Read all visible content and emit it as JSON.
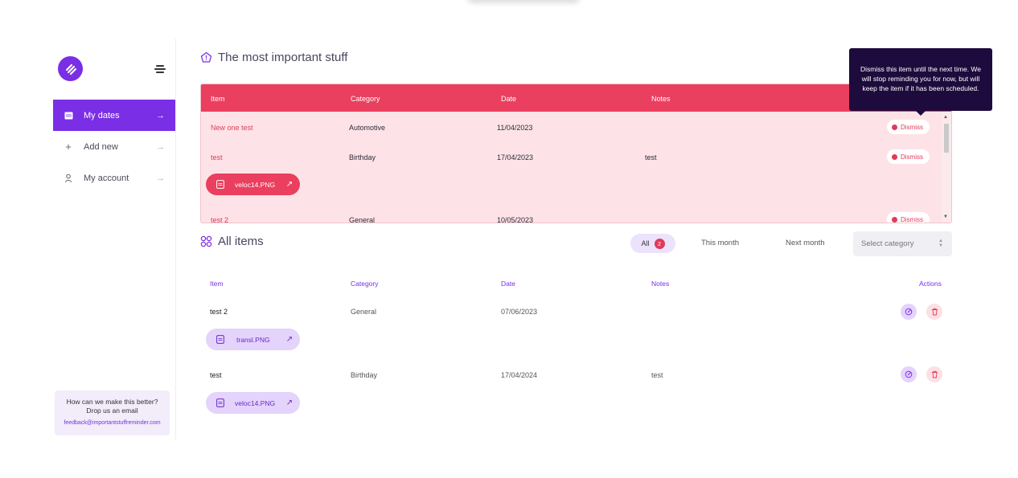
{
  "sidebar": {
    "items": [
      {
        "label": "My dates",
        "icon": "calendar-icon"
      },
      {
        "label": "Add new",
        "icon": "plus-icon"
      },
      {
        "label": "My account",
        "icon": "user-icon"
      }
    ],
    "feedback": {
      "line1": "How can we make this better?",
      "line2": "Drop us an email",
      "email": "feedback@importantstuffreminder.com"
    }
  },
  "important": {
    "title": "The most important stuff",
    "columns": {
      "item": "Item",
      "category": "Category",
      "date": "Date",
      "notes": "Notes"
    },
    "rows": [
      {
        "item": "New one test",
        "category": "Automotive",
        "date": "11/04/2023",
        "notes": "",
        "action": "Dismiss"
      },
      {
        "item": "test",
        "category": "Birthday",
        "date": "17/04/2023",
        "notes": "test",
        "action": "Dismiss",
        "file": "veloc14.PNG"
      },
      {
        "item": "test 2",
        "category": "General",
        "date": "10/05/2023",
        "notes": "",
        "action": "Dismiss"
      }
    ],
    "tooltip": "Dismiss this item until the next time. We will stop reminding you for now, but will keep the item if it has been scheduled."
  },
  "all": {
    "title": "All items",
    "filters": {
      "all": "All",
      "all_count": "2",
      "this_month": "This month",
      "next_month": "Next month"
    },
    "select_placeholder": "Select category",
    "columns": {
      "item": "Item",
      "category": "Category",
      "date": "Date",
      "notes": "Notes",
      "actions": "Actions"
    },
    "rows": [
      {
        "item": "test 2",
        "category": "General",
        "date": "07/06/2023",
        "notes": "",
        "file": "transl.PNG"
      },
      {
        "item": "test",
        "category": "Birthday",
        "date": "17/04/2024",
        "notes": "test",
        "file": "veloc14.PNG"
      }
    ]
  },
  "colors": {
    "accent": "#7a2ee6",
    "danger": "#ea3f5f",
    "tooltip": "#1e0b3d"
  }
}
